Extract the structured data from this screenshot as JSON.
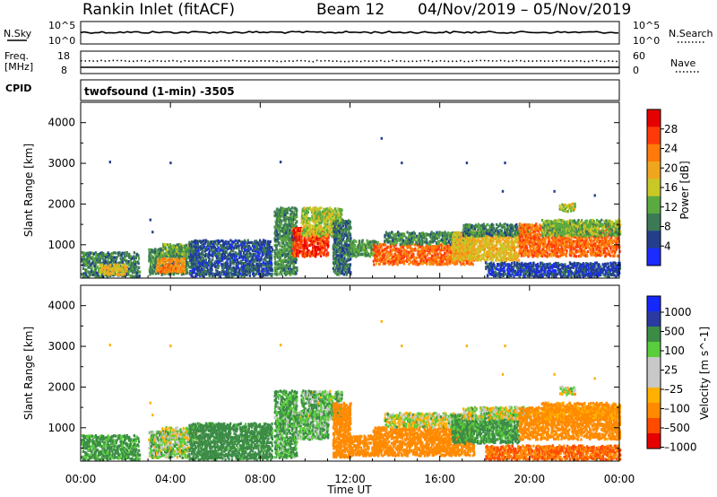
{
  "header": {
    "station": "Rankin Inlet (fitACF)",
    "beam": "Beam 12",
    "dates": "04/Nov/2019 – 05/Nov/2019"
  },
  "strip": {
    "nsky_label": "N.Sky",
    "nsearch_label": "N.Search",
    "freq_label": "Freq.",
    "freq_unit": "[MHz]",
    "nave_label": "Nave",
    "cpid_label": "CPID",
    "cpid_value": "twofsound (1-min) -3505",
    "noise_left_ticks": [
      "10^5",
      "10^0"
    ],
    "noise_right_ticks": [
      "10^5",
      "10^0"
    ],
    "freq_ticks": [
      "18",
      "8"
    ],
    "nave_ticks": [
      "60",
      "0"
    ]
  },
  "xaxis": {
    "label": "Time UT",
    "ticks": [
      "00:00",
      "04:00",
      "08:00",
      "12:00",
      "16:00",
      "20:00",
      "00:00"
    ]
  },
  "colors": {
    "power": [
      "#1a2cff",
      "#233f8c",
      "#3c7a55",
      "#5aaa3f",
      "#c8c826",
      "#f0a51e",
      "#ff7a0a",
      "#ff3a0a",
      "#e60000"
    ],
    "velocity": [
      "#e60000",
      "#ff4a00",
      "#ff8a00",
      "#ffb000",
      "#c8c8c8",
      "#c8c8c8",
      "#5acd3c",
      "#3c8c46",
      "#2a3aa0",
      "#1428ff"
    ]
  },
  "chart_data": [
    {
      "type": "heatmap",
      "name": "power",
      "ylabel": "Slant Range [km]",
      "yticks": [
        1000,
        2000,
        3000,
        4000
      ],
      "ylim": [
        180,
        4500
      ],
      "xlim_hours": [
        0,
        24
      ],
      "colorbar": {
        "label": "Power [dB]",
        "ticks": [
          "4",
          "8",
          "12",
          "16",
          "20",
          "24",
          "28"
        ],
        "range": [
          0,
          32
        ]
      },
      "blobs": [
        {
          "t0": 0.0,
          "t1": 2.6,
          "r0": 200,
          "r1": 800,
          "v": 9
        },
        {
          "t0": 0.8,
          "t1": 2.0,
          "r0": 250,
          "r1": 500,
          "v": 18
        },
        {
          "t0": 3.0,
          "t1": 4.8,
          "r0": 250,
          "r1": 900,
          "v": 10
        },
        {
          "t0": 3.3,
          "t1": 4.6,
          "r0": 300,
          "r1": 650,
          "v": 22
        },
        {
          "t0": 3.6,
          "t1": 5.2,
          "r0": 700,
          "r1": 1000,
          "v": 12
        },
        {
          "t0": 4.8,
          "t1": 8.5,
          "r0": 200,
          "r1": 1100,
          "v": 6
        },
        {
          "t0": 8.6,
          "t1": 9.6,
          "r0": 250,
          "r1": 1900,
          "v": 10
        },
        {
          "t0": 9.4,
          "t1": 11.0,
          "r0": 700,
          "r1": 1400,
          "v": 27
        },
        {
          "t0": 9.8,
          "t1": 11.6,
          "r0": 1200,
          "r1": 1900,
          "v": 15
        },
        {
          "t0": 11.2,
          "t1": 12.0,
          "r0": 250,
          "r1": 1600,
          "v": 8
        },
        {
          "t0": 12.0,
          "t1": 13.2,
          "r0": 700,
          "r1": 1100,
          "v": 11
        },
        {
          "t0": 13.0,
          "t1": 17.5,
          "r0": 500,
          "r1": 1000,
          "v": 24
        },
        {
          "t0": 13.5,
          "t1": 17.5,
          "r0": 1000,
          "r1": 1300,
          "v": 10
        },
        {
          "t0": 16.5,
          "t1": 19.5,
          "r0": 600,
          "r1": 1300,
          "v": 18
        },
        {
          "t0": 17.0,
          "t1": 20.0,
          "r0": 1200,
          "r1": 1500,
          "v": 9
        },
        {
          "t0": 19.5,
          "t1": 24.0,
          "r0": 700,
          "r1": 1500,
          "v": 24
        },
        {
          "t0": 20.5,
          "t1": 24.0,
          "r0": 1200,
          "r1": 1600,
          "v": 13
        },
        {
          "t0": 18.0,
          "t1": 24.0,
          "r0": 200,
          "r1": 550,
          "v": 5
        },
        {
          "t0": 21.3,
          "t1": 22.0,
          "r0": 1800,
          "r1": 2000,
          "v": 15
        }
      ],
      "specks": [
        {
          "t": 1.3,
          "r": 3020
        },
        {
          "t": 4.0,
          "r": 3000
        },
        {
          "t": 8.9,
          "r": 3020
        },
        {
          "t": 13.4,
          "r": 3600
        },
        {
          "t": 14.3,
          "r": 3000
        },
        {
          "t": 17.2,
          "r": 3000
        },
        {
          "t": 18.9,
          "r": 3000
        },
        {
          "t": 18.8,
          "r": 2300
        },
        {
          "t": 21.1,
          "r": 2300
        },
        {
          "t": 22.9,
          "r": 2200
        },
        {
          "t": 3.1,
          "r": 1600
        },
        {
          "t": 3.2,
          "r": 1300
        }
      ]
    },
    {
      "type": "heatmap",
      "name": "velocity",
      "ylabel": "Slant Range [km]",
      "yticks": [
        1000,
        2000,
        3000,
        4000
      ],
      "ylim": [
        180,
        4500
      ],
      "xlim_hours": [
        0,
        24
      ],
      "colorbar": {
        "label": "Velocity [m s^-1]",
        "ticks": [
          "1000",
          "500",
          "100",
          "25",
          "–25",
          "–100",
          "–500",
          "–1000"
        ],
        "range": [
          -1200,
          1200
        ]
      },
      "blobs": [
        {
          "t0": 0.0,
          "t1": 2.6,
          "r0": 200,
          "r1": 800,
          "v": 150
        },
        {
          "t0": 3.0,
          "t1": 4.8,
          "r0": 250,
          "r1": 900,
          "v": 50
        },
        {
          "t0": 3.6,
          "t1": 5.2,
          "r0": 700,
          "r1": 1000,
          "v": 10
        },
        {
          "t0": 4.8,
          "t1": 8.5,
          "r0": 200,
          "r1": 1100,
          "v": 200
        },
        {
          "t0": 8.6,
          "t1": 9.6,
          "r0": 250,
          "r1": 1900,
          "v": 120
        },
        {
          "t0": 9.4,
          "t1": 11.0,
          "r0": 700,
          "r1": 1400,
          "v": 90
        },
        {
          "t0": 9.8,
          "t1": 11.6,
          "r0": 1200,
          "r1": 1900,
          "v": 80
        },
        {
          "t0": 11.2,
          "t1": 12.0,
          "r0": 250,
          "r1": 1600,
          "v": -300
        },
        {
          "t0": 12.0,
          "t1": 13.2,
          "r0": 300,
          "r1": 800,
          "v": -250
        },
        {
          "t0": 13.0,
          "t1": 17.5,
          "r0": 300,
          "r1": 1000,
          "v": -350
        },
        {
          "t0": 13.5,
          "t1": 17.5,
          "r0": 1000,
          "r1": 1350,
          "v": 5
        },
        {
          "t0": 16.5,
          "t1": 19.5,
          "r0": 600,
          "r1": 1300,
          "v": 150
        },
        {
          "t0": 17.0,
          "t1": 20.0,
          "r0": 1200,
          "r1": 1500,
          "v": 0
        },
        {
          "t0": 19.5,
          "t1": 24.0,
          "r0": 700,
          "r1": 1500,
          "v": -200
        },
        {
          "t0": 20.5,
          "t1": 24.0,
          "r0": 1200,
          "r1": 1600,
          "v": -150
        },
        {
          "t0": 18.0,
          "t1": 24.0,
          "r0": 200,
          "r1": 550,
          "v": -500
        },
        {
          "t0": 21.3,
          "t1": 22.0,
          "r0": 1800,
          "r1": 2000,
          "v": 0
        }
      ],
      "specks": [
        {
          "t": 1.3,
          "r": 3020
        },
        {
          "t": 4.0,
          "r": 3000
        },
        {
          "t": 8.9,
          "r": 3020
        },
        {
          "t": 13.4,
          "r": 3600
        },
        {
          "t": 14.3,
          "r": 3000
        },
        {
          "t": 17.2,
          "r": 3000
        },
        {
          "t": 18.9,
          "r": 3000
        },
        {
          "t": 18.8,
          "r": 2300
        },
        {
          "t": 21.1,
          "r": 2300
        },
        {
          "t": 22.9,
          "r": 2200
        },
        {
          "t": 3.1,
          "r": 1600
        },
        {
          "t": 3.2,
          "r": 1300
        }
      ]
    }
  ]
}
